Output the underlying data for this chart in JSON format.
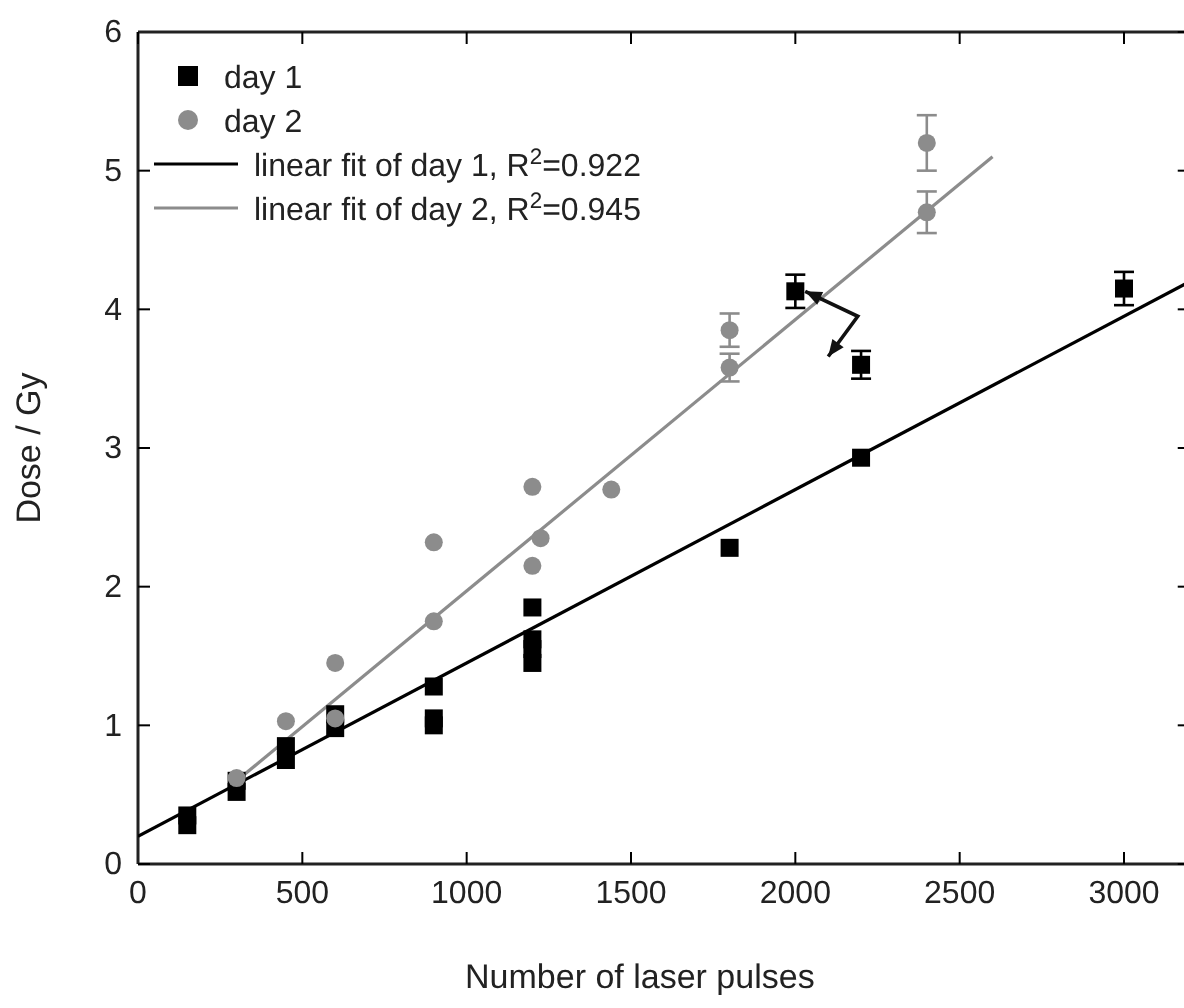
{
  "chart_data": {
    "type": "scatter",
    "xlabel": "Number of laser pulses",
    "ylabel": "Dose / Gy",
    "xlim": [
      0,
      3200
    ],
    "ylim": [
      0,
      6
    ],
    "xticks": [
      0,
      500,
      1000,
      1500,
      2000,
      2500,
      3000
    ],
    "yticks": [
      0,
      1,
      2,
      3,
      4,
      5,
      6
    ],
    "legend": "top left",
    "grid": false,
    "series": [
      {
        "name": "day 1",
        "type": "scatter",
        "marker": "square",
        "color": "#000000",
        "x": [
          150,
          150,
          300,
          300,
          450,
          450,
          600,
          600,
          900,
          900,
          900,
          1200,
          1200,
          1200,
          1200,
          1800,
          2000,
          2200,
          2200,
          3000
        ],
        "values": [
          0.28,
          0.35,
          0.52,
          0.6,
          0.75,
          0.85,
          0.98,
          1.08,
          1.0,
          1.05,
          1.28,
          1.45,
          1.55,
          1.62,
          1.85,
          2.28,
          4.13,
          3.6,
          2.93,
          4.15
        ],
        "errors": [
          null,
          null,
          null,
          null,
          null,
          null,
          null,
          null,
          null,
          null,
          null,
          null,
          null,
          null,
          null,
          null,
          0.12,
          0.1,
          null,
          0.12
        ]
      },
      {
        "name": "day 2",
        "type": "scatter",
        "marker": "circle",
        "color": "#8c8c8c",
        "x": [
          300,
          450,
          600,
          600,
          900,
          900,
          1200,
          1200,
          1225,
          1440,
          1800,
          1800,
          2400,
          2400
        ],
        "values": [
          0.62,
          1.03,
          1.05,
          1.45,
          1.75,
          2.32,
          2.15,
          2.72,
          2.35,
          2.7,
          3.58,
          3.85,
          4.7,
          5.2
        ],
        "errors": [
          null,
          null,
          null,
          null,
          null,
          null,
          null,
          null,
          null,
          null,
          0.1,
          0.12,
          0.15,
          0.2
        ]
      },
      {
        "name": "linear fit of day 1, R$^{2}$=0.922",
        "type": "line",
        "marker": "none",
        "color": "#000000",
        "x": [
          0,
          3200
        ],
        "values": [
          0.2,
          4.2
        ]
      },
      {
        "name": "linear fit of day 2, R$^{2}$=0.945",
        "type": "line",
        "marker": "none",
        "color": "#8c8c8c",
        "x": [
          280,
          2600
        ],
        "values": [
          0.56,
          5.1
        ]
      }
    ]
  }
}
